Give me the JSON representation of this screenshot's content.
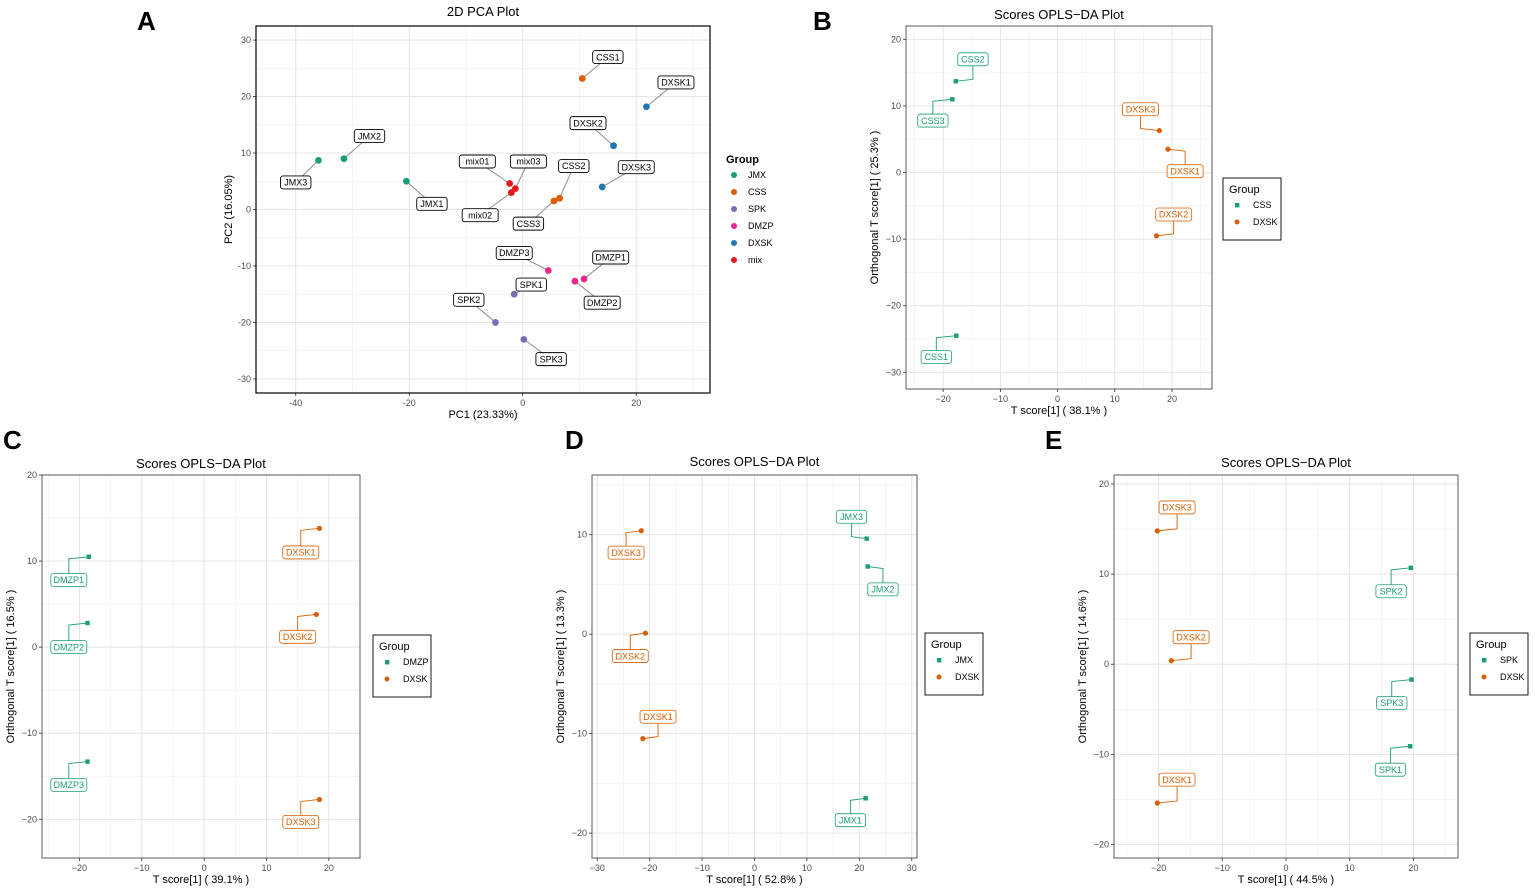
{
  "colors": {
    "JMX": "#1b9e77",
    "CSS": "#d95f02",
    "SPK": "#7570b3",
    "DMZP": "#e7298a",
    "DXSK": "#1f78b4",
    "mix": "#e31a1c",
    "teal": "#1b9e77",
    "orange": "#d95f02"
  },
  "chart_data": [
    {
      "id": "A",
      "panel_letter": "A",
      "type": "scatter",
      "title": "2D PCA Plot",
      "xlabel": "PC1 (23.33%)",
      "ylabel": "PC2 (16.05%)",
      "xlim": [
        -47,
        33
      ],
      "ylim": [
        -32.5,
        32.5
      ],
      "xticks": [
        -40,
        -20,
        0,
        20
      ],
      "yticks": [
        -30,
        -20,
        -10,
        0,
        10,
        20,
        30
      ],
      "xtick_labels": [
        "-40",
        "-20",
        "0",
        "20"
      ],
      "ytick_labels": [
        "-30",
        "-20",
        "-10",
        "0",
        "10",
        "20",
        "30"
      ],
      "legend_title": "Group",
      "legend": [
        "JMX",
        "CSS",
        "SPK",
        "DMZP",
        "DXSK",
        "mix"
      ],
      "points": [
        {
          "label": "JMX1",
          "group": "JMX",
          "x": -20.5,
          "y": 5.0,
          "lx": -16,
          "ly": 1.0
        },
        {
          "label": "JMX2",
          "group": "JMX",
          "x": -31.5,
          "y": 9.0,
          "lx": -27,
          "ly": 13.0
        },
        {
          "label": "JMX3",
          "group": "JMX",
          "x": -36,
          "y": 8.7,
          "lx": -40,
          "ly": 4.8
        },
        {
          "label": "CSS1",
          "group": "CSS",
          "x": 10.5,
          "y": 23.2,
          "lx": 15,
          "ly": 27.0
        },
        {
          "label": "CSS2",
          "group": "CSS",
          "x": 6.5,
          "y": 2.0,
          "lx": 9,
          "ly": 7.7
        },
        {
          "label": "CSS3",
          "group": "CSS",
          "x": 5.5,
          "y": 1.5,
          "lx": 1,
          "ly": -2.5
        },
        {
          "label": "SPK1",
          "group": "SPK",
          "x": -1.5,
          "y": -15.0,
          "lx": 1.5,
          "ly": -13.3
        },
        {
          "label": "SPK2",
          "group": "SPK",
          "x": -4.8,
          "y": -20.0,
          "lx": -9.5,
          "ly": -16.0
        },
        {
          "label": "SPK3",
          "group": "SPK",
          "x": 0.2,
          "y": -23.0,
          "lx": 5,
          "ly": -26.5
        },
        {
          "label": "DMZP1",
          "group": "DMZP",
          "x": 10.8,
          "y": -12.3,
          "lx": 15.5,
          "ly": -8.5
        },
        {
          "label": "DMZP2",
          "group": "DMZP",
          "x": 9.2,
          "y": -12.7,
          "lx": 14,
          "ly": -16.5
        },
        {
          "label": "DMZP3",
          "group": "DMZP",
          "x": 4.5,
          "y": -10.8,
          "lx": -1.5,
          "ly": -7.7
        },
        {
          "label": "DXSK1",
          "group": "DXSK",
          "x": 21.8,
          "y": 18.2,
          "lx": 27,
          "ly": 22.5
        },
        {
          "label": "DXSK2",
          "group": "DXSK",
          "x": 16.0,
          "y": 11.3,
          "lx": 11.5,
          "ly": 15.3
        },
        {
          "label": "DXSK3",
          "group": "DXSK",
          "x": 14.0,
          "y": 4.0,
          "lx": 20,
          "ly": 7.5
        },
        {
          "label": "mix01",
          "group": "mix",
          "x": -2.3,
          "y": 4.6,
          "lx": -8,
          "ly": 8.5
        },
        {
          "label": "mix02",
          "group": "mix",
          "x": -2.0,
          "y": 3.0,
          "lx": -7.5,
          "ly": -1.0
        },
        {
          "label": "mix03",
          "group": "mix",
          "x": -1.3,
          "y": 3.7,
          "lx": 1,
          "ly": 8.5
        }
      ]
    },
    {
      "id": "B",
      "panel_letter": "B",
      "type": "scatter",
      "title": "Scores OPLS−DA Plot",
      "xlabel": "T score[1] ( 38.1% )",
      "ylabel": "Orthogonal T score[1] ( 25.3% )",
      "xlim": [
        -26.5,
        27
      ],
      "ylim": [
        -32.5,
        22
      ],
      "xticks": [
        -20,
        -10,
        0,
        10,
        20
      ],
      "yticks": [
        -30,
        -20,
        -10,
        0,
        10,
        20
      ],
      "xtick_labels": [
        "−20",
        "−10",
        "0",
        "10",
        "20"
      ],
      "ytick_labels": [
        "−30",
        "−20",
        "−10",
        "0",
        "10",
        "20"
      ],
      "legend_title": "Group",
      "legend": [
        "CSS",
        "DXSK"
      ],
      "points": [
        {
          "label": "CSS2",
          "group": "CSS",
          "x": -17.8,
          "y": 13.7,
          "lx": -14.8,
          "ly": 17.0
        },
        {
          "label": "CSS3",
          "group": "CSS",
          "x": -18.4,
          "y": 11.0,
          "lx": -21.8,
          "ly": 7.8
        },
        {
          "label": "CSS1",
          "group": "CSS",
          "x": -17.7,
          "y": -24.5,
          "lx": -21.2,
          "ly": -27.7
        },
        {
          "label": "DXSK3",
          "group": "DXSK",
          "x": 17.8,
          "y": 6.3,
          "lx": 14.5,
          "ly": 9.5
        },
        {
          "label": "DXSK1",
          "group": "DXSK",
          "x": 19.3,
          "y": 3.5,
          "lx": 22.3,
          "ly": 0.2
        },
        {
          "label": "DXSK2",
          "group": "DXSK",
          "x": 17.3,
          "y": -9.5,
          "lx": 20.3,
          "ly": -6.3
        }
      ]
    },
    {
      "id": "C",
      "panel_letter": "C",
      "type": "scatter",
      "title": "Scores OPLS−DA Plot",
      "xlabel": "T score[1] ( 39.1% )",
      "ylabel": "Orthogonal T score[1] ( 16.5% )",
      "xlim": [
        -26,
        25
      ],
      "ylim": [
        -24.5,
        20
      ],
      "xticks": [
        -20,
        -10,
        0,
        10,
        20
      ],
      "yticks": [
        -20,
        -10,
        0,
        10,
        20
      ],
      "xtick_labels": [
        "−20",
        "−10",
        "0",
        "10",
        "20"
      ],
      "ytick_labels": [
        "−20",
        "−10",
        "0",
        "10",
        "20"
      ],
      "legend_title": "Group",
      "legend": [
        "DMZP",
        "DXSK"
      ],
      "points": [
        {
          "label": "DMZP1",
          "group": "DMZP",
          "x": -18.5,
          "y": 10.5,
          "lx": -21.7,
          "ly": 7.8
        },
        {
          "label": "DMZP2",
          "group": "DMZP",
          "x": -18.7,
          "y": 2.8,
          "lx": -21.7,
          "ly": 0.0
        },
        {
          "label": "DMZP3",
          "group": "DMZP",
          "x": -18.7,
          "y": -13.3,
          "lx": -21.7,
          "ly": -16.0
        },
        {
          "label": "DXSK1",
          "group": "DXSK",
          "x": 18.5,
          "y": 13.8,
          "lx": 15.5,
          "ly": 11.0
        },
        {
          "label": "DXSK2",
          "group": "DXSK",
          "x": 18.0,
          "y": 3.8,
          "lx": 15.0,
          "ly": 1.2
        },
        {
          "label": "DXSK3",
          "group": "DXSK",
          "x": 18.5,
          "y": -17.7,
          "lx": 15.5,
          "ly": -20.3
        }
      ]
    },
    {
      "id": "D",
      "panel_letter": "D",
      "type": "scatter",
      "title": "Scores OPLS−DA Plot",
      "xlabel": "T score[1] ( 52.8% )",
      "ylabel": "Orthogonal T score[1] ( 13.3% )",
      "xlim": [
        -31,
        31
      ],
      "ylim": [
        -22.5,
        16
      ],
      "xticks": [
        -30,
        -20,
        -10,
        0,
        10,
        20,
        30
      ],
      "yticks": [
        -20,
        -10,
        0,
        10
      ],
      "xtick_labels": [
        "−30",
        "−20",
        "−10",
        "0",
        "10",
        "20",
        "30"
      ],
      "ytick_labels": [
        "−20",
        "−10",
        "0",
        "10"
      ],
      "legend_title": "Group",
      "legend": [
        "JMX",
        "DXSK"
      ],
      "points": [
        {
          "label": "JMX3",
          "group": "JMX",
          "x": 21.4,
          "y": 9.6,
          "lx": 18.5,
          "ly": 11.8
        },
        {
          "label": "JMX2",
          "group": "JMX",
          "x": 21.6,
          "y": 6.8,
          "lx": 24.5,
          "ly": 4.5
        },
        {
          "label": "JMX1",
          "group": "JMX",
          "x": 21.2,
          "y": -16.5,
          "lx": 18.3,
          "ly": -18.7
        },
        {
          "label": "DXSK3",
          "group": "DXSK",
          "x": -21.6,
          "y": 10.4,
          "lx": -24.5,
          "ly": 8.2
        },
        {
          "label": "DXSK2",
          "group": "DXSK",
          "x": -20.8,
          "y": 0.1,
          "lx": -23.7,
          "ly": -2.2
        },
        {
          "label": "DXSK1",
          "group": "DXSK",
          "x": -21.3,
          "y": -10.5,
          "lx": -18.4,
          "ly": -8.3
        }
      ]
    },
    {
      "id": "E",
      "panel_letter": "E",
      "type": "scatter",
      "title": "Scores OPLS−DA Plot",
      "xlabel": "T score[1] ( 44.5% )",
      "ylabel": "Orthogonal T score[1] ( 14.6% )",
      "xlim": [
        -27,
        27
      ],
      "ylim": [
        -21.5,
        21
      ],
      "xticks": [
        -20,
        -10,
        0,
        10,
        20
      ],
      "yticks": [
        -20,
        -10,
        0,
        10,
        20
      ],
      "xtick_labels": [
        "−20",
        "−10",
        "0",
        "10",
        "20"
      ],
      "ytick_labels": [
        "−20",
        "−10",
        "0",
        "10",
        "20"
      ],
      "legend_title": "Group",
      "legend": [
        "SPK",
        "DXSK"
      ],
      "points": [
        {
          "label": "SPK2",
          "group": "SPK",
          "x": 19.6,
          "y": 10.7,
          "lx": 16.5,
          "ly": 8.1
        },
        {
          "label": "SPK3",
          "group": "SPK",
          "x": 19.7,
          "y": -1.7,
          "lx": 16.6,
          "ly": -4.3
        },
        {
          "label": "SPK1",
          "group": "SPK",
          "x": 19.5,
          "y": -9.1,
          "lx": 16.4,
          "ly": -11.7
        },
        {
          "label": "DXSK3",
          "group": "DXSK",
          "x": -20.2,
          "y": 14.8,
          "lx": -17.1,
          "ly": 17.4
        },
        {
          "label": "DXSK2",
          "group": "DXSK",
          "x": -18.0,
          "y": 0.4,
          "lx": -14.9,
          "ly": 3.0
        },
        {
          "label": "DXSK1",
          "group": "DXSK",
          "x": -20.2,
          "y": -15.4,
          "lx": -17.1,
          "ly": -12.8
        }
      ]
    }
  ]
}
